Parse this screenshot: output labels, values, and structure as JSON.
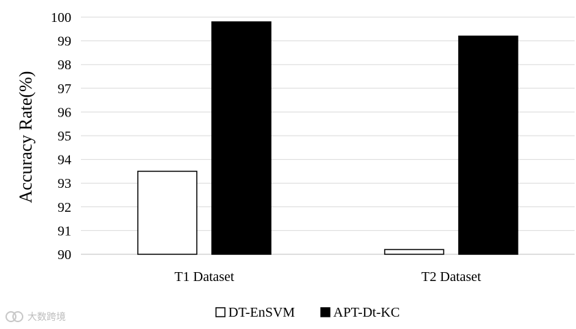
{
  "chart_data": {
    "type": "bar",
    "categories": [
      "T1 Dataset",
      "T2 Dataset"
    ],
    "series": [
      {
        "name": "DT-EnSVM",
        "values": [
          93.5,
          90.2
        ],
        "fill": "#ffffff",
        "stroke": "#000000"
      },
      {
        "name": "APT-Dt-KC",
        "values": [
          99.8,
          99.2
        ],
        "fill": "#000000",
        "stroke": "#000000"
      }
    ],
    "ylabel": "Accuracy Rate(%)",
    "xlabel": "",
    "ylim": [
      90,
      100
    ],
    "yticks": [
      90,
      91,
      92,
      93,
      94,
      95,
      96,
      97,
      98,
      99,
      100
    ],
    "grid": true,
    "legend_position": "bottom-center"
  },
  "watermark": {
    "icon": "link-logo-icon",
    "text": "大数跨境"
  }
}
